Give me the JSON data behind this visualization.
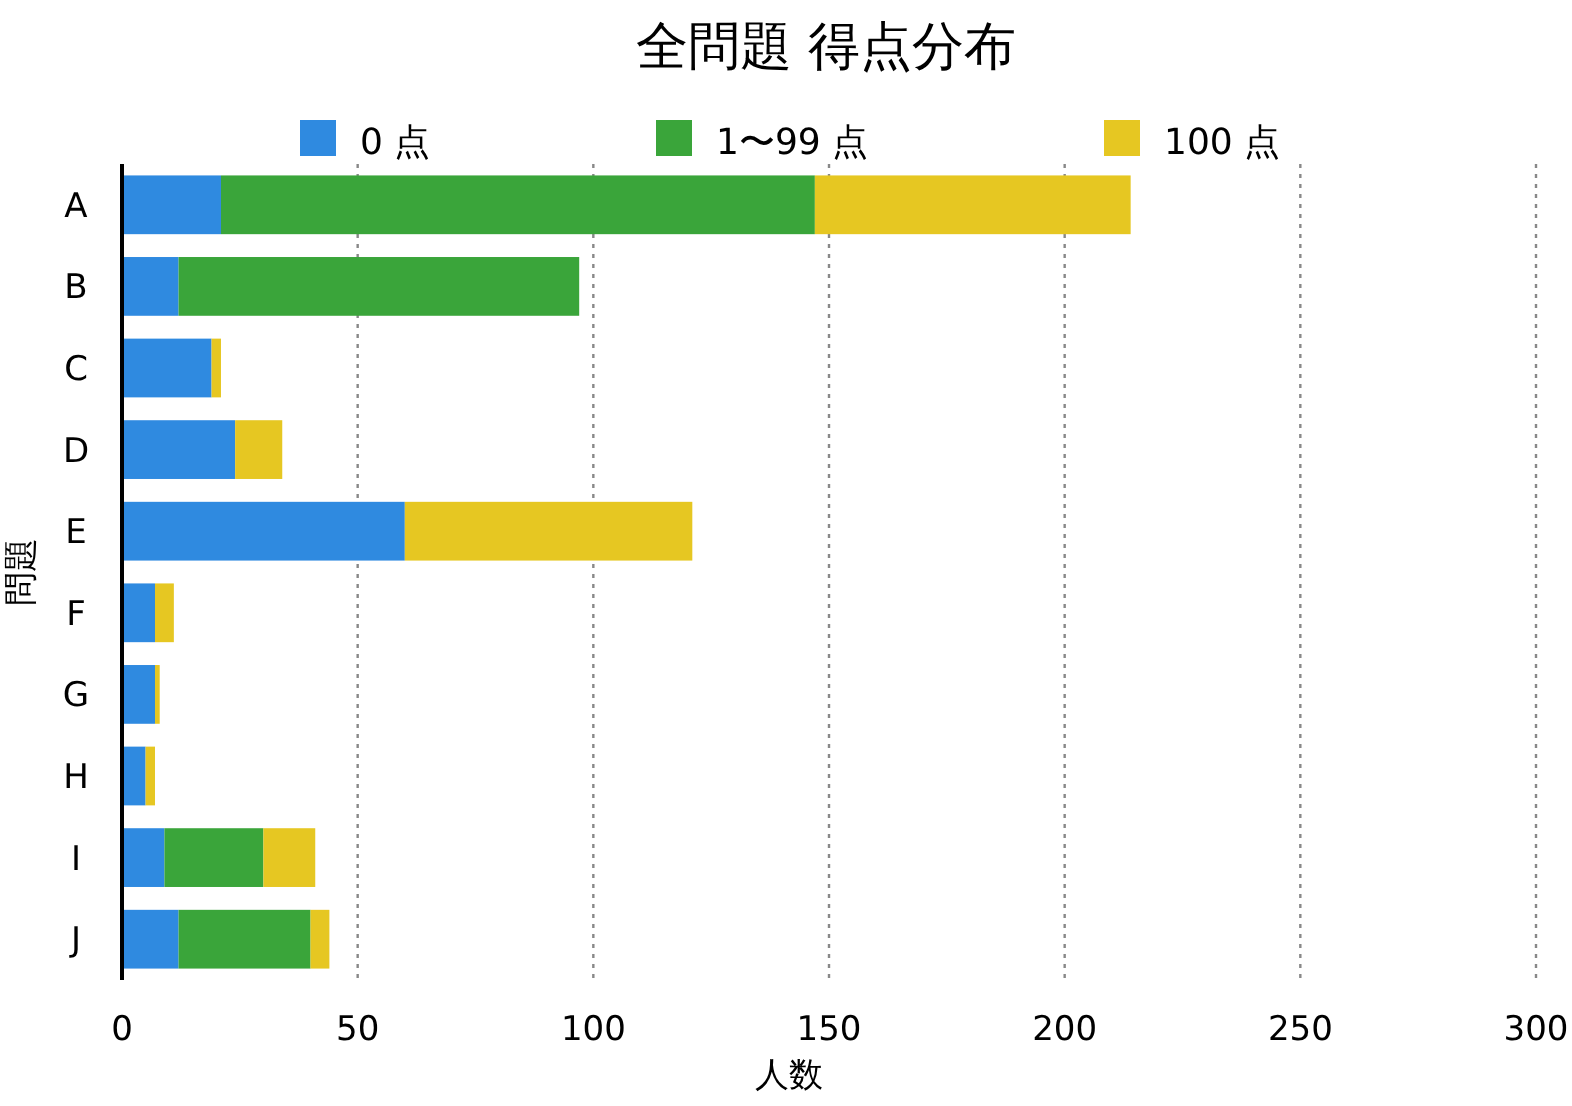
{
  "chart_data": {
    "type": "bar",
    "orientation": "horizontal",
    "stacked": true,
    "title": "全問題 得点分布",
    "xlabel": "人数",
    "ylabel": "問題",
    "categories": [
      "A",
      "B",
      "C",
      "D",
      "E",
      "F",
      "G",
      "H",
      "I",
      "J"
    ],
    "series": [
      {
        "name": "0 点",
        "color": "#2f8ae0",
        "values": [
          21,
          12,
          19,
          24,
          60,
          7,
          7,
          5,
          9,
          12
        ]
      },
      {
        "name": "1〜99 点",
        "color": "#3aa53a",
        "values": [
          126,
          85,
          0,
          0,
          0,
          0,
          0,
          0,
          21,
          28
        ]
      },
      {
        "name": "100 点",
        "color": "#e6c722",
        "values": [
          67,
          0,
          2,
          10,
          61,
          4,
          1,
          2,
          11,
          4
        ]
      }
    ],
    "xlim": [
      0,
      300
    ],
    "xticks": [
      0,
      50,
      100,
      150,
      200,
      250,
      300
    ],
    "grid": "x",
    "legend": "top"
  }
}
